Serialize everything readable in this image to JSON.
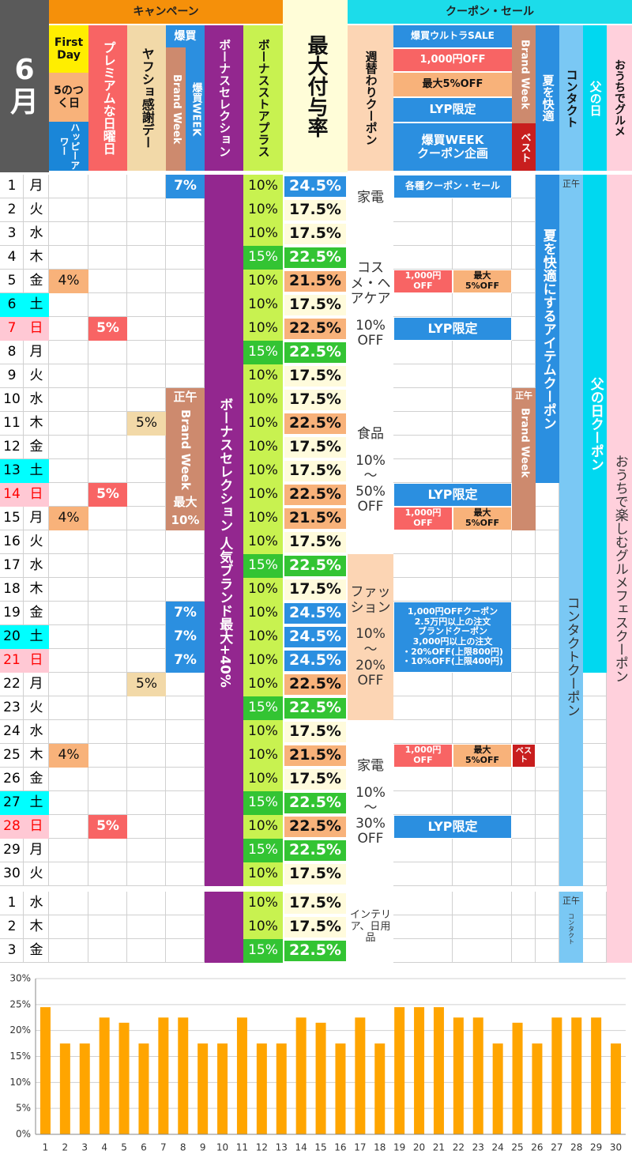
{
  "header": {
    "month": "6月",
    "campaign": "キャンペーン",
    "coupon_sale": "クーポン・セール",
    "first_day": "First Day",
    "five": "5のつく日",
    "happy": "ハッピーアワー",
    "premium": "プレミアムな日曜日",
    "yafusho": "ヤフショ感謝デー",
    "bakugai": "爆買",
    "brand_week": "Brand Week",
    "bakugai_week": "爆買WEEK",
    "bonus_sel": "ボーナスセレクション",
    "store_plus": "ボーナスストアプラス",
    "max_rate": "最大付与率",
    "weekly": "週替わりクーポン",
    "ultra": "爆買ウルトラSALE",
    "off1000": "1,000円OFF",
    "max5": "最大5%OFF",
    "lyp": "LYP限定",
    "bw_coupon": "爆買WEEK\nクーポン企画",
    "brand_week2": "Brand Week",
    "best": "ベスト",
    "summer": "夏を快適",
    "contact": "コンタクト",
    "father": "父の日",
    "gourmet": "おうちでグルメ"
  },
  "days": [
    {
      "day": 1,
      "wd": "月",
      "c4": "7%",
      "store": "10%",
      "store_bg": "#c8f250",
      "rate": "24.5%",
      "rate_bg": "#2b8fe0"
    },
    {
      "day": 2,
      "wd": "火",
      "store": "10%",
      "store_bg": "#c8f250",
      "rate": "17.5%",
      "rate_bg": "#fffbdc"
    },
    {
      "day": 3,
      "wd": "水",
      "store": "10%",
      "store_bg": "#c8f250",
      "rate": "17.5%",
      "rate_bg": "#fffbdc"
    },
    {
      "day": 4,
      "wd": "木",
      "store": "15%",
      "store_bg": "#33c433",
      "rate": "22.5%",
      "rate_bg": "#33c433"
    },
    {
      "day": 5,
      "wd": "金",
      "c1": "4%",
      "store": "10%",
      "store_bg": "#c8f250",
      "rate": "21.5%",
      "rate_bg": "#f8b27a"
    },
    {
      "day": 6,
      "wd": "土",
      "day_bg": "#00ffff",
      "store": "10%",
      "store_bg": "#c8f250",
      "rate": "17.5%",
      "rate_bg": "#fffbdc"
    },
    {
      "day": 7,
      "wd": "日",
      "day_bg": "#ffc8d4",
      "day_color": "#ff0000",
      "c2": "5%",
      "store": "10%",
      "store_bg": "#c8f250",
      "rate": "22.5%",
      "rate_bg": "#f8b27a"
    },
    {
      "day": 8,
      "wd": "月",
      "store": "15%",
      "store_bg": "#33c433",
      "rate": "22.5%",
      "rate_bg": "#33c433"
    },
    {
      "day": 9,
      "wd": "火",
      "store": "10%",
      "store_bg": "#c8f250",
      "rate": "17.5%",
      "rate_bg": "#fffbdc"
    },
    {
      "day": 10,
      "wd": "水",
      "store": "10%",
      "store_bg": "#c8f250",
      "rate": "17.5%",
      "rate_bg": "#fffbdc"
    },
    {
      "day": 11,
      "wd": "木",
      "c3": "5%",
      "store": "10%",
      "store_bg": "#c8f250",
      "rate": "22.5%",
      "rate_bg": "#f8b27a"
    },
    {
      "day": 12,
      "wd": "金",
      "store": "10%",
      "store_bg": "#c8f250",
      "rate": "17.5%",
      "rate_bg": "#fffbdc"
    },
    {
      "day": 13,
      "wd": "土",
      "day_bg": "#00ffff",
      "store": "10%",
      "store_bg": "#c8f250",
      "rate": "17.5%",
      "rate_bg": "#fffbdc"
    },
    {
      "day": 14,
      "wd": "日",
      "day_bg": "#ffc8d4",
      "day_color": "#ff0000",
      "c2": "5%",
      "store": "10%",
      "store_bg": "#c8f250",
      "rate": "22.5%",
      "rate_bg": "#f8b27a"
    },
    {
      "day": 15,
      "wd": "月",
      "c1": "4%",
      "store": "10%",
      "store_bg": "#c8f250",
      "rate": "21.5%",
      "rate_bg": "#f8b27a"
    },
    {
      "day": 16,
      "wd": "火",
      "store": "10%",
      "store_bg": "#c8f250",
      "rate": "17.5%",
      "rate_bg": "#fffbdc"
    },
    {
      "day": 17,
      "wd": "水",
      "store": "15%",
      "store_bg": "#33c433",
      "rate": "22.5%",
      "rate_bg": "#33c433"
    },
    {
      "day": 18,
      "wd": "木",
      "store": "10%",
      "store_bg": "#c8f250",
      "rate": "17.5%",
      "rate_bg": "#fffbdc"
    },
    {
      "day": 19,
      "wd": "金",
      "c4": "7%",
      "store": "10%",
      "store_bg": "#c8f250",
      "rate": "24.5%",
      "rate_bg": "#2b8fe0"
    },
    {
      "day": 20,
      "wd": "土",
      "day_bg": "#00ffff",
      "c4": "7%",
      "store": "10%",
      "store_bg": "#c8f250",
      "rate": "24.5%",
      "rate_bg": "#2b8fe0"
    },
    {
      "day": 21,
      "wd": "日",
      "day_bg": "#ffc8d4",
      "day_color": "#ff0000",
      "c4": "7%",
      "store": "10%",
      "store_bg": "#c8f250",
      "rate": "24.5%",
      "rate_bg": "#2b8fe0"
    },
    {
      "day": 22,
      "wd": "月",
      "c3": "5%",
      "store": "10%",
      "store_bg": "#c8f250",
      "rate": "22.5%",
      "rate_bg": "#f8b27a"
    },
    {
      "day": 23,
      "wd": "火",
      "store": "15%",
      "store_bg": "#33c433",
      "rate": "22.5%",
      "rate_bg": "#33c433"
    },
    {
      "day": 24,
      "wd": "水",
      "store": "10%",
      "store_bg": "#c8f250",
      "rate": "17.5%",
      "rate_bg": "#fffbdc"
    },
    {
      "day": 25,
      "wd": "木",
      "c1": "4%",
      "store": "10%",
      "store_bg": "#c8f250",
      "rate": "21.5%",
      "rate_bg": "#f8b27a"
    },
    {
      "day": 26,
      "wd": "金",
      "store": "10%",
      "store_bg": "#c8f250",
      "rate": "17.5%",
      "rate_bg": "#fffbdc"
    },
    {
      "day": 27,
      "wd": "土",
      "day_bg": "#00ffff",
      "store": "15%",
      "store_bg": "#33c433",
      "rate": "22.5%",
      "rate_bg": "#33c433"
    },
    {
      "day": 28,
      "wd": "日",
      "day_bg": "#ffc8d4",
      "day_color": "#ff0000",
      "c2": "5%",
      "store": "10%",
      "store_bg": "#c8f250",
      "rate": "22.5%",
      "rate_bg": "#f8b27a"
    },
    {
      "day": 29,
      "wd": "月",
      "store": "15%",
      "store_bg": "#33c433",
      "rate": "22.5%",
      "rate_bg": "#33c433"
    },
    {
      "day": 30,
      "wd": "火",
      "store": "10%",
      "store_bg": "#c8f250",
      "rate": "17.5%",
      "rate_bg": "#fffbdc"
    },
    {
      "day": 1,
      "wd": "水",
      "store": "10%",
      "store_bg": "#c8f250",
      "rate": "17.5%",
      "rate_bg": "#fffbdc"
    },
    {
      "day": 2,
      "wd": "木",
      "store": "10%",
      "store_bg": "#c8f250",
      "rate": "17.5%",
      "rate_bg": "#fffbdc"
    },
    {
      "day": 3,
      "wd": "金",
      "store": "15%",
      "store_bg": "#33c433",
      "rate": "22.5%",
      "rate_bg": "#33c433"
    }
  ],
  "blocks": {
    "brand_week": {
      "noon": "正午",
      "name": "Brand Week",
      "max": "最大",
      "pct": "10%"
    },
    "bonus": "ボーナスセレクション 人気ブランド最大+40%",
    "themes": [
      {
        "title": "家電"
      },
      {
        "title": "コスメ・ヘアケア",
        "rate": "10%\nOFF"
      },
      {
        "title": "食品",
        "rate": "10%\n～\n50%\nOFF"
      },
      {
        "title": "ファッション",
        "rate": "10%\n～\n20%\nOFF"
      },
      {
        "title": "家電",
        "rate": "10%\n～\n30%\nOFF"
      },
      {
        "title": "インテリア、日用品"
      }
    ],
    "coupon_all": "各種クーポン・セール",
    "off_max": [
      {
        "off": "1,000円\nOFF",
        "max": "最大\n5%OFF"
      },
      {
        "off": "1,000円\nOFF",
        "max": "最大\n5%OFF"
      },
      {
        "off": "1,000円\nOFF",
        "max": "最大\n5%OFF"
      }
    ],
    "lyp": [
      "LYP限定",
      "LYP限定",
      "LYP限定"
    ],
    "fashion_coupon": "1,000円OFFクーポン\n2.5万円以上の注文\nブランドクーポン\n3,000円以上の注文\n・20%OFF(上限800円)\n・10%OFF(上限400円)",
    "best": "ベスト",
    "brand_week2": {
      "noon": "正午",
      "name": "Brand Week"
    },
    "summer": "夏を快適にするアイテムクーポン",
    "contact": {
      "noon": "正午",
      "name": "コンタクトクーポン"
    },
    "contact_july": {
      "noon": "正午",
      "name": "コンタクト"
    },
    "father": "父の日クーポン",
    "gourmet": "おうちで楽しむグルメフェスクーポン"
  },
  "chart_data": {
    "type": "bar",
    "categories": [
      1,
      2,
      3,
      4,
      5,
      6,
      7,
      8,
      9,
      10,
      11,
      12,
      13,
      14,
      15,
      16,
      17,
      18,
      19,
      20,
      21,
      22,
      23,
      24,
      25,
      26,
      27,
      28,
      29,
      30
    ],
    "values": [
      24.5,
      17.5,
      17.5,
      22.5,
      21.5,
      17.5,
      22.5,
      22.5,
      17.5,
      17.5,
      22.5,
      17.5,
      17.5,
      22.5,
      21.5,
      17.5,
      22.5,
      17.5,
      24.5,
      24.5,
      24.5,
      22.5,
      22.5,
      17.5,
      21.5,
      17.5,
      22.5,
      22.5,
      22.5,
      17.5
    ],
    "color": "#ffa500",
    "ylim": [
      0,
      30
    ],
    "yticks": [
      {
        "value": 0,
        "label": "0%"
      },
      {
        "value": 5,
        "label": "5%"
      },
      {
        "value": 10,
        "label": "10%"
      },
      {
        "value": 15,
        "label": "15%"
      },
      {
        "value": 20,
        "label": "20%"
      },
      {
        "value": 25,
        "label": "25%"
      },
      {
        "value": 30,
        "label": "30%"
      }
    ],
    "grid": true
  }
}
